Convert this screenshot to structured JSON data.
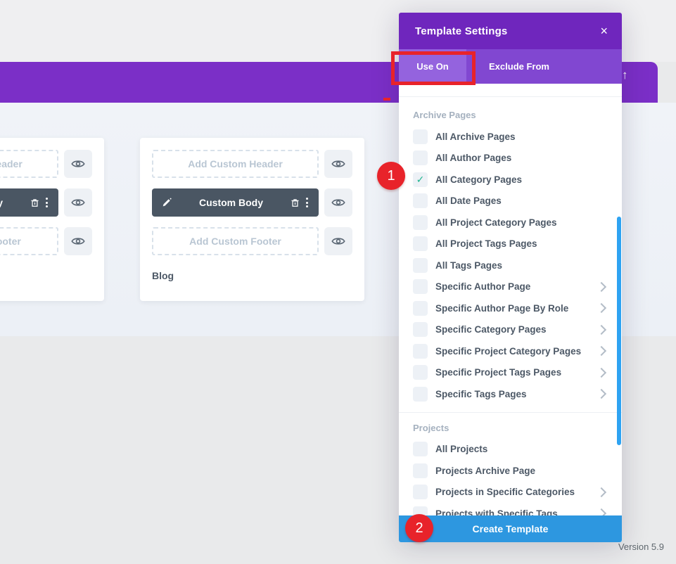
{
  "colors": {
    "header_purple": "#7b2fc7",
    "modal_title_purple": "#6f26bd",
    "tab_bar_purple": "#8147d1",
    "active_tab_purple": "#9463de",
    "create_button_blue": "#2d97e0",
    "scrollbar_blue": "#2ea3f2",
    "check_green": "#1fb58f",
    "annotation_red": "#e8232a",
    "dark_bar_slate": "#4a5663"
  },
  "icons": {
    "close": "×",
    "scroll_up_arrow": "↑",
    "check": "✓"
  },
  "header_bar": {
    "scroll_up_glyph": "↑"
  },
  "cards": {
    "left": {
      "header_placeholder": "Add Custom Header",
      "body_label": "Custom Body",
      "footer_placeholder": "Add Custom Footer"
    },
    "right": {
      "header_placeholder": "Add Custom Header",
      "body_label": "Custom Body",
      "footer_placeholder": "Add Custom Footer",
      "title": "Blog"
    }
  },
  "modal": {
    "title": "Template Settings",
    "close_glyph": "×",
    "check_glyph": "✓",
    "tabs": [
      {
        "label": "Use On",
        "active": true
      },
      {
        "label": "Exclude From",
        "active": false
      }
    ],
    "sections": [
      {
        "heading": "Archive Pages",
        "items": [
          {
            "label": "All Archive Pages",
            "checked": false,
            "chevron": false
          },
          {
            "label": "All Author Pages",
            "checked": false,
            "chevron": false
          },
          {
            "label": "All Category Pages",
            "checked": true,
            "chevron": false
          },
          {
            "label": "All Date Pages",
            "checked": false,
            "chevron": false
          },
          {
            "label": "All Project Category Pages",
            "checked": false,
            "chevron": false
          },
          {
            "label": "All Project Tags Pages",
            "checked": false,
            "chevron": false
          },
          {
            "label": "All Tags Pages",
            "checked": false,
            "chevron": false
          },
          {
            "label": "Specific Author Page",
            "checked": false,
            "chevron": true
          },
          {
            "label": "Specific Author Page By Role",
            "checked": false,
            "chevron": true
          },
          {
            "label": "Specific Category Pages",
            "checked": false,
            "chevron": true
          },
          {
            "label": "Specific Project Category Pages",
            "checked": false,
            "chevron": true
          },
          {
            "label": "Specific Project Tags Pages",
            "checked": false,
            "chevron": true
          },
          {
            "label": "Specific Tags Pages",
            "checked": false,
            "chevron": true
          }
        ]
      },
      {
        "heading": "Projects",
        "items": [
          {
            "label": "All Projects",
            "checked": false,
            "chevron": false
          },
          {
            "label": "Projects Archive Page",
            "checked": false,
            "chevron": false
          },
          {
            "label": "Projects in Specific Categories",
            "checked": false,
            "chevron": true
          },
          {
            "label": "Projects with Specific Tags",
            "checked": false,
            "chevron": true
          }
        ]
      }
    ],
    "create_button_label": "Create Template"
  },
  "annotations": {
    "step1": "1",
    "step2": "2"
  },
  "footer": {
    "version": "Version 5.9"
  }
}
